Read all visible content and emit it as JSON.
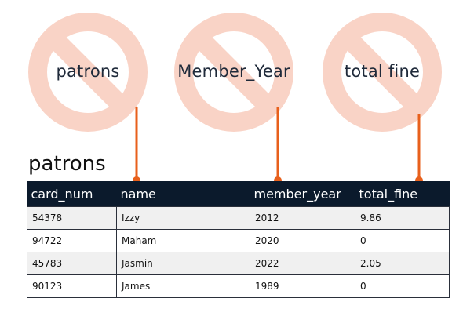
{
  "labels": {
    "patrons": "patrons",
    "member_year": "Member_Year",
    "total_fine": "total fine"
  },
  "table": {
    "title": "patrons",
    "columns": [
      "card_num",
      "name",
      "member_year",
      "total_fine"
    ],
    "rows": [
      [
        "54378",
        "Izzy",
        "2012",
        "9.86"
      ],
      [
        "94722",
        "Maham",
        "2020",
        "0"
      ],
      [
        "45783",
        "Jasmin",
        "2022",
        "2.05"
      ],
      [
        "90123",
        "James",
        "1989",
        "0"
      ]
    ]
  },
  "colors": {
    "prohibited_symbol": "#f9d3c6",
    "connector": "#e8601c",
    "header_bg": "#0b1a2c",
    "label_text": "#1f2a3a"
  },
  "icons": [
    "prohibited-icon",
    "prohibited-icon",
    "prohibited-icon"
  ]
}
